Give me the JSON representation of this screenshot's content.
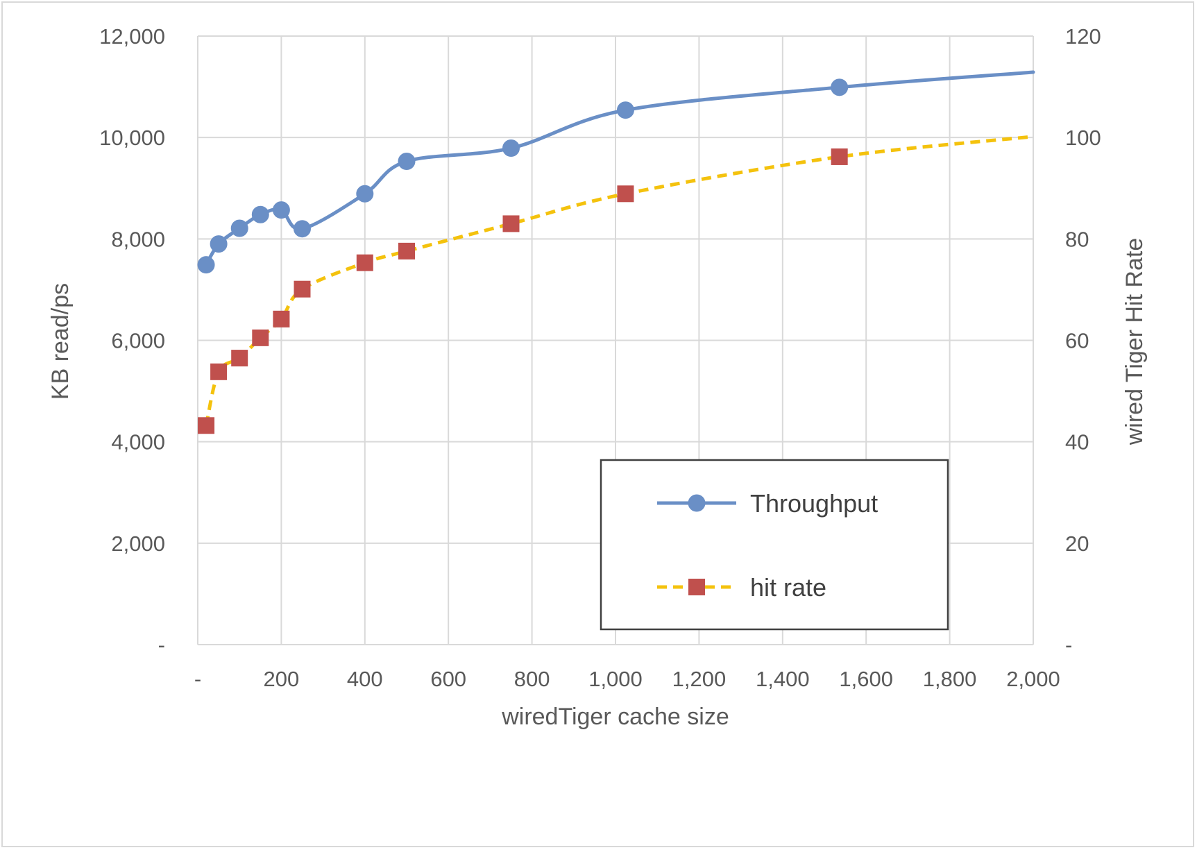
{
  "chart_data": {
    "type": "line",
    "xlabel": "wiredTiger cache size",
    "ylabel": "KB read/ps",
    "y2label": "wired Tiger Hit Rate",
    "xlim": [
      0,
      2000
    ],
    "ylim": [
      0,
      12000
    ],
    "y2lim": [
      0,
      120
    ],
    "x_ticks": [
      0,
      200,
      400,
      600,
      800,
      1000,
      1200,
      1400,
      1600,
      1800,
      2000
    ],
    "x_tick_labels": [
      "-",
      "200",
      "400",
      "600",
      "800",
      "1,000",
      "1,200",
      "1,400",
      "1,600",
      "1,800",
      "2,000"
    ],
    "y_ticks": [
      0,
      2000,
      4000,
      6000,
      8000,
      10000,
      12000
    ],
    "y_tick_labels": [
      "-",
      "2,000",
      "4,000",
      "6,000",
      "8,000",
      "10,000",
      "12,000"
    ],
    "y2_ticks": [
      0,
      20,
      40,
      60,
      80,
      100,
      120
    ],
    "y2_tick_labels": [
      "-",
      "20",
      "40",
      "60",
      "80",
      "100",
      "120"
    ],
    "grid": true,
    "legend_position": "bottom-right",
    "series": [
      {
        "name": "Throughput",
        "axis": "left",
        "color": "#6a8fc6",
        "marker": "circle",
        "line_style": "solid",
        "points": [
          [
            20,
            7490
          ],
          [
            50,
            7900
          ],
          [
            100,
            8210
          ],
          [
            150,
            8480
          ],
          [
            200,
            8570
          ],
          [
            250,
            8200
          ],
          [
            400,
            8890
          ],
          [
            500,
            9530
          ],
          [
            750,
            9790
          ],
          [
            1024,
            10540
          ],
          [
            1536,
            10990
          ],
          [
            2048,
            11320
          ]
        ],
        "marker_count": 11
      },
      {
        "name": "hit rate",
        "axis": "right",
        "color": "#f4c20d",
        "marker_color": "#c0504d",
        "marker": "square",
        "line_style": "dashed",
        "points": [
          [
            20,
            43.2
          ],
          [
            50,
            53.8
          ],
          [
            100,
            56.5
          ],
          [
            150,
            60.5
          ],
          [
            200,
            64.2
          ],
          [
            250,
            70.1
          ],
          [
            400,
            75.3
          ],
          [
            500,
            77.6
          ],
          [
            750,
            83.0
          ],
          [
            1024,
            88.9
          ],
          [
            1536,
            96.2
          ],
          [
            2048,
            100.6
          ]
        ],
        "marker_count": 11
      }
    ]
  }
}
